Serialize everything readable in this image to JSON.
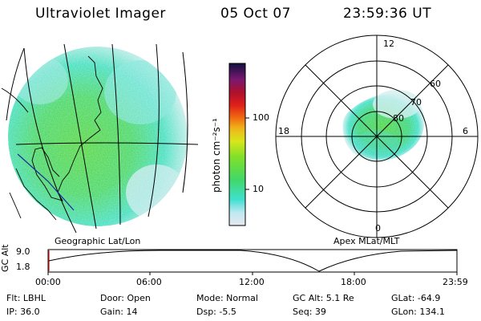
{
  "header": {
    "instrument": "Ultraviolet Imager",
    "date": "05 Oct 07",
    "time": "23:59:36 UT"
  },
  "geo_panel": {
    "caption": "Geographic Lat/Lon"
  },
  "colorbar": {
    "unit_label": "photon cm⁻²s⁻¹",
    "ticks": [
      "100",
      "10"
    ],
    "scale": "log"
  },
  "polar_panel": {
    "caption": "Apex MLat/MLT",
    "mlt_labels": {
      "top": "12",
      "left": "18",
      "right": "6",
      "bottom": "0"
    },
    "lat_labels": [
      "60",
      "70",
      "80"
    ]
  },
  "altitude_strip": {
    "ylabel": "GC Alt",
    "ymax_label": "9.0",
    "ymin_label": "1.8",
    "x_ticks": [
      "00:00",
      "06:00",
      "12:00",
      "18:00",
      "23:59"
    ]
  },
  "info": {
    "flt": "Flt: LBHL",
    "ip": "IP: 36.0",
    "door": "Door: Open",
    "gain": "Gain: 14",
    "mode": "Mode: Normal",
    "dsp": "Dsp:   -5.5",
    "gcalt": "GC Alt: 5.1 Re",
    "seq": "Seq: 39",
    "glat": "GLat: -64.9",
    "glon": "GLon: 134.1"
  },
  "colors": {
    "emission_green": "#3fd04a",
    "emission_cyan": "#3fe0c8",
    "background_pale": "#d8f0f0"
  }
}
